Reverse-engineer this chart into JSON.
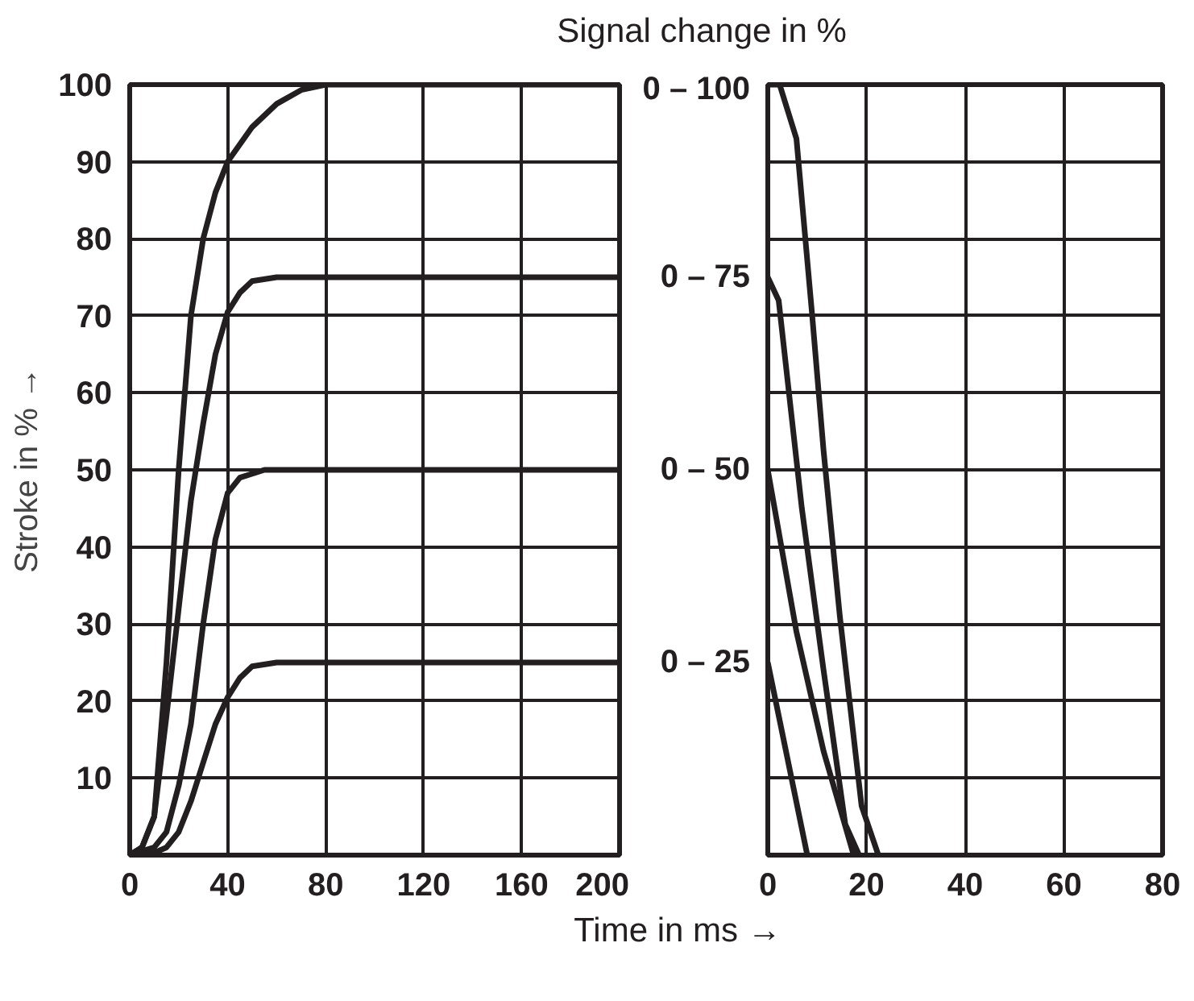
{
  "chart_data": [
    {
      "type": "line",
      "title": "Signal change in %",
      "xlabel": "Time in ms →",
      "ylabel": "Stroke in % →",
      "xlim": [
        0,
        200
      ],
      "ylim": [
        0,
        100
      ],
      "xticks": [
        0,
        40,
        80,
        120,
        160,
        200
      ],
      "yticks": [
        10,
        20,
        30,
        40,
        50,
        60,
        70,
        80,
        90,
        100
      ],
      "grid": true,
      "line_style": "solid",
      "series": [
        {
          "name": "0 – 100",
          "color": "#231f20",
          "x": [
            0,
            5,
            10,
            15,
            20,
            25,
            30,
            35,
            40,
            50,
            60,
            70,
            80,
            200
          ],
          "values": [
            0,
            1,
            5,
            25,
            50,
            70,
            80,
            86,
            90,
            94.5,
            97.5,
            99.3,
            100,
            100
          ]
        },
        {
          "name": "0 – 75",
          "color": "#231f20",
          "x": [
            0,
            5,
            10,
            15,
            20,
            25,
            30,
            35,
            40,
            45,
            50,
            60,
            200
          ],
          "values": [
            0,
            1,
            5,
            18,
            32,
            46,
            56,
            65,
            70.5,
            73,
            74.5,
            75,
            75
          ]
        },
        {
          "name": "0 – 50",
          "color": "#231f20",
          "x": [
            0,
            10,
            15,
            20,
            25,
            30,
            35,
            40,
            45,
            55,
            200
          ],
          "values": [
            0,
            1,
            3,
            9,
            17,
            30,
            41,
            47,
            49,
            50,
            50
          ]
        },
        {
          "name": "0 – 25",
          "color": "#231f20",
          "x": [
            0,
            10,
            15,
            20,
            25,
            30,
            35,
            40,
            45,
            50,
            60,
            200
          ],
          "values": [
            0,
            0.3,
            1,
            3,
            7,
            12,
            17,
            20.5,
            23,
            24.5,
            25,
            25
          ]
        }
      ]
    },
    {
      "type": "line",
      "xlim": [
        0,
        80
      ],
      "ylim": [
        0,
        100
      ],
      "xticks": [
        0,
        20,
        40,
        60,
        80
      ],
      "yticks": [
        10,
        20,
        30,
        40,
        50,
        60,
        70,
        80,
        90,
        100
      ],
      "grid": true,
      "tick_labels": "x",
      "line_style": "solid",
      "series": [
        {
          "color": "#231f20",
          "x": [
            0,
            2.4,
            5.8,
            9,
            11.3,
            14.6,
            19,
            22.4
          ],
          "values": [
            100,
            100,
            93,
            70,
            52.5,
            31,
            6.4,
            0
          ]
        },
        {
          "color": "#231f20",
          "x": [
            0,
            2.2,
            6.9,
            11.3,
            15.7,
            18.5
          ],
          "values": [
            75,
            72,
            45,
            24,
            4,
            0
          ]
        },
        {
          "color": "#231f20",
          "x": [
            0,
            5.8,
            11.3,
            17.4
          ],
          "values": [
            50,
            29,
            13.5,
            0
          ]
        },
        {
          "color": "#231f20",
          "x": [
            0,
            8
          ],
          "values": [
            25,
            0
          ]
        }
      ]
    }
  ]
}
